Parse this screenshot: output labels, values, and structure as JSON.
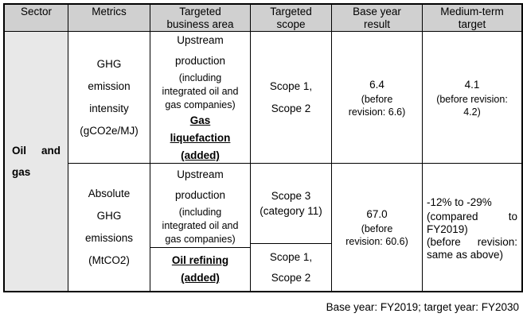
{
  "colors": {
    "header_bg": "#d0d0d0",
    "sector_bg": "#e8e8e8",
    "border": "#000000",
    "text": "#000000"
  },
  "header": {
    "sector": {
      "line1": "Sector",
      "line2": ""
    },
    "metrics": {
      "line1": "Metrics",
      "line2": ""
    },
    "business": {
      "line1": "Targeted",
      "line2": "business area"
    },
    "scope": {
      "line1": "Targeted",
      "line2": "scope"
    },
    "base": {
      "line1": "Base year",
      "line2": "result"
    },
    "target": {
      "line1": "Medium-term",
      "line2": "target"
    }
  },
  "sector": {
    "word1": "Oil",
    "word2": "and",
    "line2": "gas"
  },
  "row1": {
    "metrics": {
      "l1": "GHG",
      "l2": "emission",
      "l3": "intensity",
      "l4": "(gCO2e/MJ)"
    },
    "business": {
      "main1": "Upstream",
      "main2": "production",
      "small1": "(including",
      "small2": "integrated oil and",
      "small3": "gas companies)",
      "added1": "Gas",
      "added2": "liquefaction",
      "added3": "(added)"
    },
    "scope": {
      "l1": "Scope 1,",
      "l2": "Scope 2"
    },
    "base": {
      "value": "6.4",
      "sub1": "(before",
      "sub2": "revision: 6.6)"
    },
    "target": {
      "value": "4.1",
      "sub1": "(before revision:",
      "sub2": "4.2)"
    }
  },
  "row2": {
    "metrics": {
      "l1": "Absolute",
      "l2": "GHG",
      "l3": "emissions",
      "l4": "(MtCO2)"
    },
    "business_top": {
      "main1": "Upstream",
      "main2": "production",
      "small1": "(including",
      "small2": "integrated oil and",
      "small3": "gas companies)"
    },
    "business_bottom": {
      "l1": "Oil refining",
      "l2": "(added)"
    },
    "scope_top": {
      "l1": "Scope 3",
      "l2": "(category 11)"
    },
    "scope_bottom": {
      "l1": "Scope 1,",
      "l2": "Scope 2"
    },
    "base": {
      "value": "67.0",
      "sub1": "(before",
      "sub2": "revision: 60.6)"
    },
    "target": {
      "l1": "-12% to -29%",
      "l2a": "(compared",
      "l2b": "to",
      "l3": "FY2019)",
      "l4a": "(before",
      "l4b": "revision:",
      "l5": "same as above)"
    }
  },
  "footer": {
    "note": "Base year: FY2019; target year: FY2030"
  }
}
